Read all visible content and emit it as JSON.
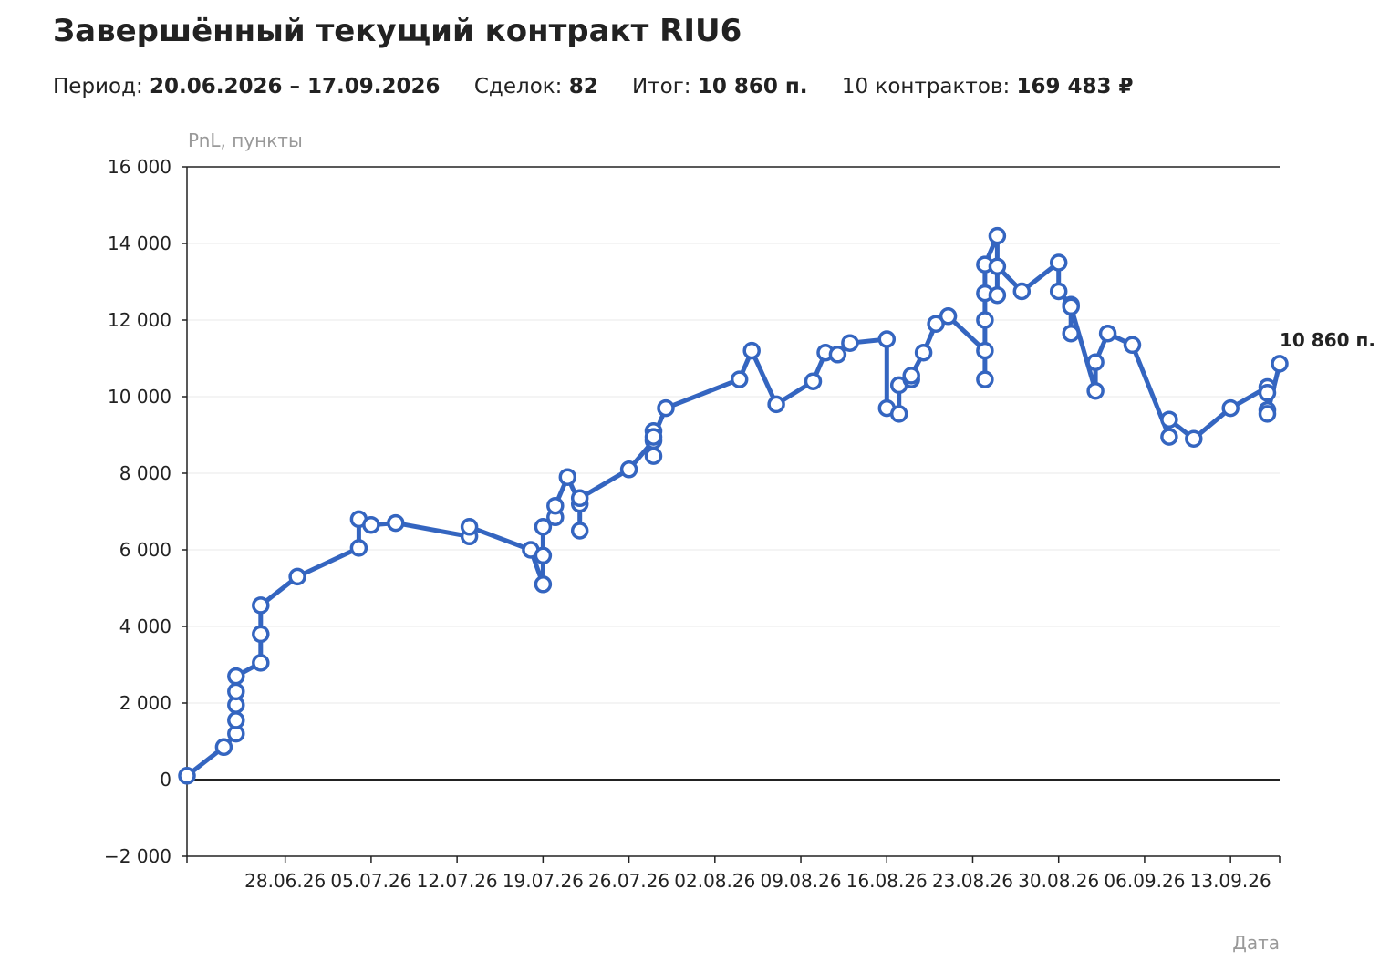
{
  "header": {
    "title": "Завершённый текущий контракт RIU6",
    "period_label": "Период:",
    "period_value": "20.06.2026 – 17.09.2026",
    "deals_label": "Сделок:",
    "deals_value": "82",
    "total_label": "Итог:",
    "total_value": "10 860 п.",
    "contracts_label": "10 контрактов:",
    "contracts_value": "169 483 ₽"
  },
  "chart_data": {
    "type": "line",
    "title": "Завершённый текущий контракт RIU6",
    "ylabel": "PnL, пункты",
    "xlabel": "Дата",
    "ylim": [
      -2000,
      16000
    ],
    "yticks": [
      -2000,
      0,
      2000,
      4000,
      6000,
      8000,
      10000,
      12000,
      14000,
      16000
    ],
    "ytick_labels": [
      "−2 000",
      "0",
      "2 000",
      "4 000",
      "6 000",
      "8 000",
      "10 000",
      "12 000",
      "14 000",
      "16 000"
    ],
    "xlim": [
      "2026-06-20",
      "2026-09-17"
    ],
    "xtick_labels": [
      "28.06.26",
      "05.07.26",
      "12.07.26",
      "19.07.26",
      "26.07.26",
      "02.08.26",
      "09.08.26",
      "16.08.26",
      "23.08.26",
      "30.08.26",
      "06.09.26",
      "13.09.26"
    ],
    "grid": true,
    "line_color": "#3465c0",
    "end_label": "10 860 п.",
    "series": [
      {
        "values": [
          [
            "2026-06-20",
            100
          ],
          [
            "2026-06-23",
            850
          ],
          [
            "2026-06-24",
            1200
          ],
          [
            "2026-06-24",
            1550
          ],
          [
            "2026-06-24",
            1950
          ],
          [
            "2026-06-24",
            2300
          ],
          [
            "2026-06-24",
            2700
          ],
          [
            "2026-06-26",
            3050
          ],
          [
            "2026-06-26",
            3800
          ],
          [
            "2026-06-26",
            4550
          ],
          [
            "2026-06-29",
            5300
          ],
          [
            "2026-07-04",
            6050
          ],
          [
            "2026-07-04",
            6800
          ],
          [
            "2026-07-05",
            6650
          ],
          [
            "2026-07-07",
            6700
          ],
          [
            "2026-07-13",
            6350
          ],
          [
            "2026-07-13",
            6600
          ],
          [
            "2026-07-18",
            6000
          ],
          [
            "2026-07-19",
            5100
          ],
          [
            "2026-07-19",
            5850
          ],
          [
            "2026-07-19",
            6600
          ],
          [
            "2026-07-20",
            6850
          ],
          [
            "2026-07-20",
            7150
          ],
          [
            "2026-07-21",
            7900
          ],
          [
            "2026-07-22",
            7200
          ],
          [
            "2026-07-22",
            6500
          ],
          [
            "2026-07-22",
            7350
          ],
          [
            "2026-07-26",
            8100
          ],
          [
            "2026-07-28",
            8850
          ],
          [
            "2026-07-28",
            9100
          ],
          [
            "2026-07-28",
            8450
          ],
          [
            "2026-07-28",
            8950
          ],
          [
            "2026-07-29",
            9700
          ],
          [
            "2026-08-04",
            10450
          ],
          [
            "2026-08-05",
            11200
          ],
          [
            "2026-08-07",
            9800
          ],
          [
            "2026-08-10",
            10400
          ],
          [
            "2026-08-11",
            11150
          ],
          [
            "2026-08-12",
            11100
          ],
          [
            "2026-08-13",
            11400
          ],
          [
            "2026-08-16",
            11500
          ],
          [
            "2026-08-16",
            9700
          ],
          [
            "2026-08-17",
            9550
          ],
          [
            "2026-08-17",
            10300
          ],
          [
            "2026-08-18",
            10450
          ],
          [
            "2026-08-18",
            10550
          ],
          [
            "2026-08-19",
            11150
          ],
          [
            "2026-08-20",
            11900
          ],
          [
            "2026-08-21",
            12100
          ],
          [
            "2026-08-24",
            11200
          ],
          [
            "2026-08-24",
            10450
          ],
          [
            "2026-08-24",
            12000
          ],
          [
            "2026-08-24",
            12700
          ],
          [
            "2026-08-24",
            13450
          ],
          [
            "2026-08-25",
            14200
          ],
          [
            "2026-08-25",
            12650
          ],
          [
            "2026-08-25",
            13400
          ],
          [
            "2026-08-27",
            12750
          ],
          [
            "2026-08-30",
            13500
          ],
          [
            "2026-08-30",
            12750
          ],
          [
            "2026-08-31",
            12400
          ],
          [
            "2026-08-31",
            11650
          ],
          [
            "2026-08-31",
            12350
          ],
          [
            "2026-09-02",
            10150
          ],
          [
            "2026-09-02",
            10900
          ],
          [
            "2026-09-03",
            11650
          ],
          [
            "2026-09-05",
            11350
          ],
          [
            "2026-09-08",
            8950
          ],
          [
            "2026-09-08",
            9400
          ],
          [
            "2026-09-10",
            8900
          ],
          [
            "2026-09-13",
            9700
          ],
          [
            "2026-09-16",
            10250
          ],
          [
            "2026-09-16",
            9650
          ],
          [
            "2026-09-16",
            10100
          ],
          [
            "2026-09-16",
            9550
          ],
          [
            "2026-09-17",
            10860
          ]
        ]
      }
    ]
  }
}
